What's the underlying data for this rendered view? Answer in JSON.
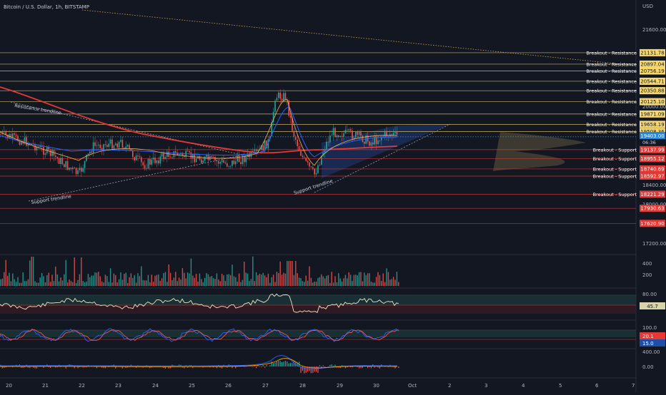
{
  "header": {
    "symbol_label": "Bitcoin / U.S. Dollar, 1h, BITSTAMP",
    "currency": "USD"
  },
  "colors": {
    "background": "#131722",
    "resistance": "#f5d76e",
    "support": "#e53935",
    "ma_red": "#e53935",
    "ma_blue": "#2962ff",
    "candle_up": "#26a69a",
    "candle_down": "#ef5350"
  },
  "price_axis": {
    "ticks": [
      {
        "label": "21600.00",
        "price": 21600
      },
      {
        "label": "20000.00",
        "price": 20000
      },
      {
        "label": "18400.00",
        "price": 18400
      },
      {
        "label": "18000.00",
        "price": 18000
      },
      {
        "label": "17200.00",
        "price": 17200
      }
    ],
    "current_price": "19403.00",
    "countdown": "06:36"
  },
  "resistance_levels": [
    {
      "label": "Breakout - Resistance",
      "price": "21131.78"
    },
    {
      "label": "Breakout - Resistance",
      "price": "20897.04"
    },
    {
      "label": "Breakout - Resistance",
      "price": "20756.19"
    },
    {
      "label": "Breakout - Resistance",
      "price": "20544.71"
    },
    {
      "label": "Breakout - Resistance",
      "price": "20350.88"
    },
    {
      "label": "Breakout - Resistance",
      "price": "20125.10"
    },
    {
      "label": "Breakout - Resistance",
      "price": "19871.09"
    },
    {
      "label": "Breakout - Resistance",
      "price": "19658.19"
    },
    {
      "label": "Breakout - Resistance",
      "price": "19508.36"
    }
  ],
  "support_levels": [
    {
      "label": "Breakout - Support",
      "price": "19137.99"
    },
    {
      "label": "Breakout - Support",
      "price": "18955.12"
    },
    {
      "label": "Breakout - Support",
      "price": "18740.69"
    },
    {
      "label": "Breakout - Support",
      "price": "18592.97"
    },
    {
      "label": "Breakout - Support",
      "price": "18221.29"
    },
    {
      "label": "",
      "price": "17930.63"
    },
    {
      "label": "",
      "price": "17620.90"
    }
  ],
  "annotations": {
    "resistance_trendline": "Resistance trendline",
    "support_trendline_1": "Support trendline",
    "support_trendline_2": "Support trendline"
  },
  "volume_axis": [
    "400",
    "200"
  ],
  "rsi": {
    "upper": "80.00",
    "value": "45.7"
  },
  "stoch": {
    "upper": "100.0",
    "k": "20.1",
    "d": "15.0"
  },
  "macd": {
    "upper": "400.00",
    "zero": "0.00"
  },
  "time_axis": [
    "20",
    "21",
    "22",
    "23",
    "24",
    "25",
    "26",
    "27",
    "28",
    "29",
    "30",
    "Oct",
    "2",
    "3",
    "4",
    "5",
    "6",
    "7"
  ]
}
